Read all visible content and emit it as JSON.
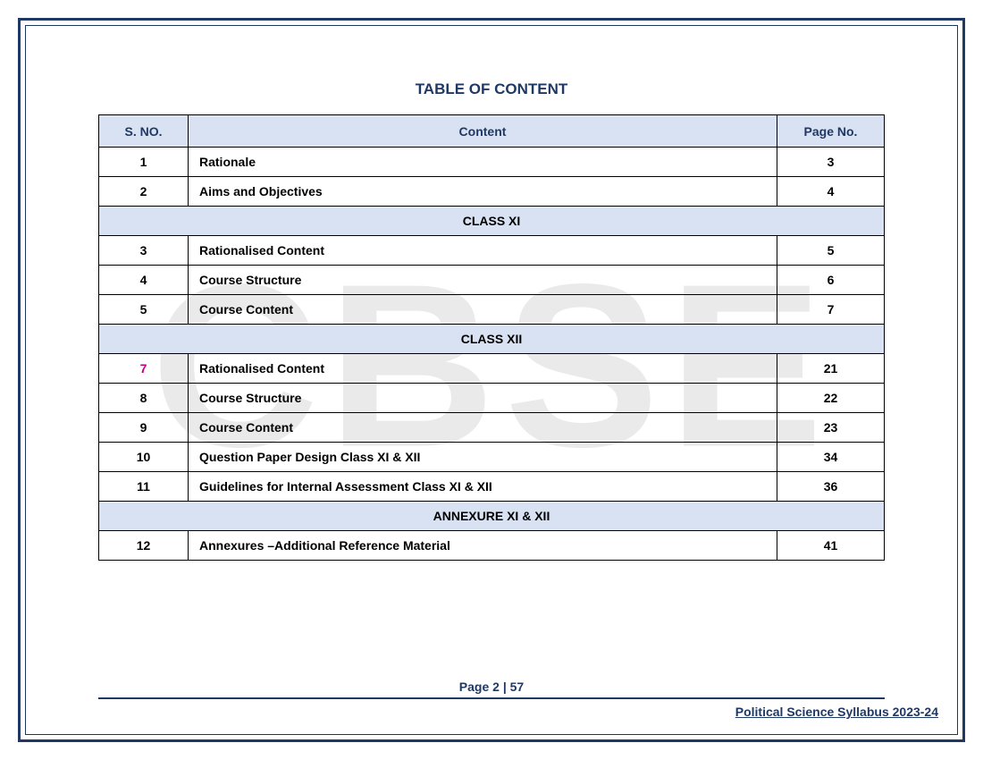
{
  "watermark_text": "CBSE",
  "title": "TABLE OF CONTENT",
  "columns": [
    "S. NO.",
    "Content",
    "Page No."
  ],
  "colors": {
    "frame": "#1f3864",
    "header_bg": "#d9e2f3",
    "header_text": "#1f3864",
    "watermark": "#d9d9d9",
    "highlight_sno": "#c00080"
  },
  "rows": [
    {
      "type": "row",
      "sno": "1",
      "content": "Rationale",
      "page": "3"
    },
    {
      "type": "row",
      "sno": "2",
      "content": "Aims and Objectives",
      "page": "4"
    },
    {
      "type": "section",
      "label": "CLASS  XI"
    },
    {
      "type": "row",
      "sno": "3",
      "content": "Rationalised Content",
      "page": "5"
    },
    {
      "type": "row",
      "sno": "4",
      "content": "Course Structure",
      "page": "6"
    },
    {
      "type": "row",
      "sno": "5",
      "content": "Course Content",
      "page": "7"
    },
    {
      "type": "section",
      "label": "CLASS XII"
    },
    {
      "type": "row",
      "sno": "7",
      "content": "Rationalised Content",
      "page": "21",
      "highlight": true
    },
    {
      "type": "row",
      "sno": "8",
      "content": "Course Structure",
      "page": "22"
    },
    {
      "type": "row",
      "sno": "9",
      "content": "Course Content",
      "page": "23"
    },
    {
      "type": "row",
      "sno": "10",
      "content": "Question Paper Design Class XI & XII",
      "page": "34"
    },
    {
      "type": "row",
      "sno": "11",
      "content": "Guidelines for Internal Assessment Class XI & XII",
      "page": "36"
    },
    {
      "type": "section",
      "label": "ANNEXURE XI & XII"
    },
    {
      "type": "row",
      "sno": "12",
      "content": "Annexures –Additional Reference Material",
      "page": "41"
    }
  ],
  "footer": {
    "page_label": "Page 2 | 57",
    "doc_name": "Political Science Syllabus 2023-24"
  }
}
